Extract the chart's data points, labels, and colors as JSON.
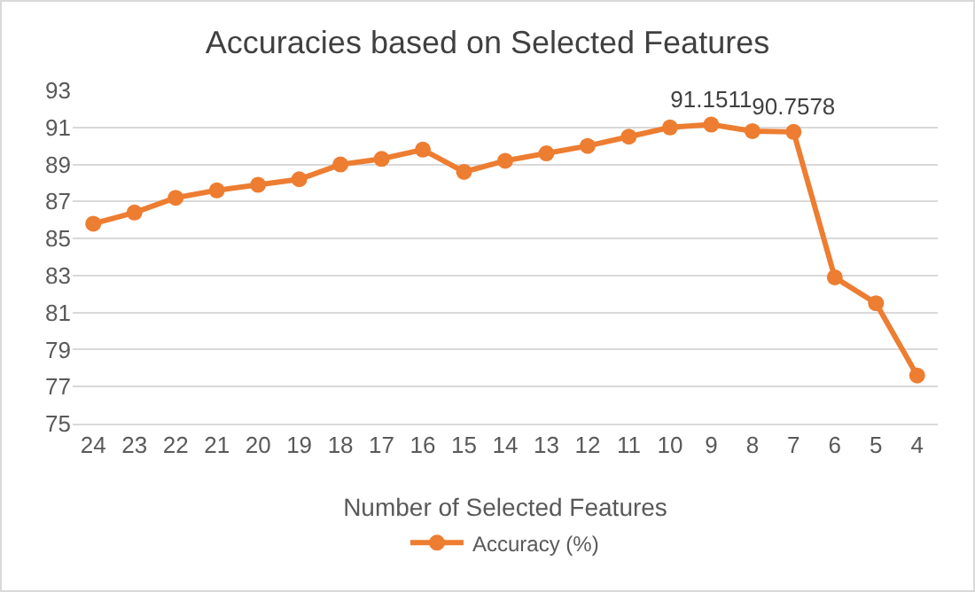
{
  "chart_data": {
    "type": "line",
    "title": "Accuracies based on Selected Features",
    "xlabel": "Number of Selected Features",
    "categories": [
      "24",
      "23",
      "22",
      "21",
      "20",
      "19",
      "18",
      "17",
      "16",
      "15",
      "14",
      "13",
      "12",
      "11",
      "10",
      "9",
      "8",
      "7",
      "6",
      "5",
      "4"
    ],
    "series": [
      {
        "name": "Accuracy (%)",
        "color": "#ed7d31",
        "values": [
          85.8,
          86.4,
          87.2,
          87.6,
          87.9,
          88.2,
          89.0,
          89.3,
          89.8,
          88.6,
          89.2,
          89.6,
          90.0,
          90.5,
          91.0,
          91.1511,
          90.8,
          90.7578,
          82.9,
          81.5,
          77.6
        ],
        "value_labels": [
          null,
          null,
          null,
          null,
          null,
          null,
          null,
          null,
          null,
          null,
          null,
          null,
          null,
          null,
          null,
          "91.1511",
          null,
          "90.7578",
          null,
          null,
          null
        ]
      }
    ],
    "ylim": [
      75,
      93
    ],
    "yticks": [
      75,
      77,
      79,
      81,
      83,
      85,
      87,
      89,
      91,
      93
    ],
    "grid": "y",
    "legend": "bottom",
    "marker": "circle",
    "line_style": "solid"
  }
}
